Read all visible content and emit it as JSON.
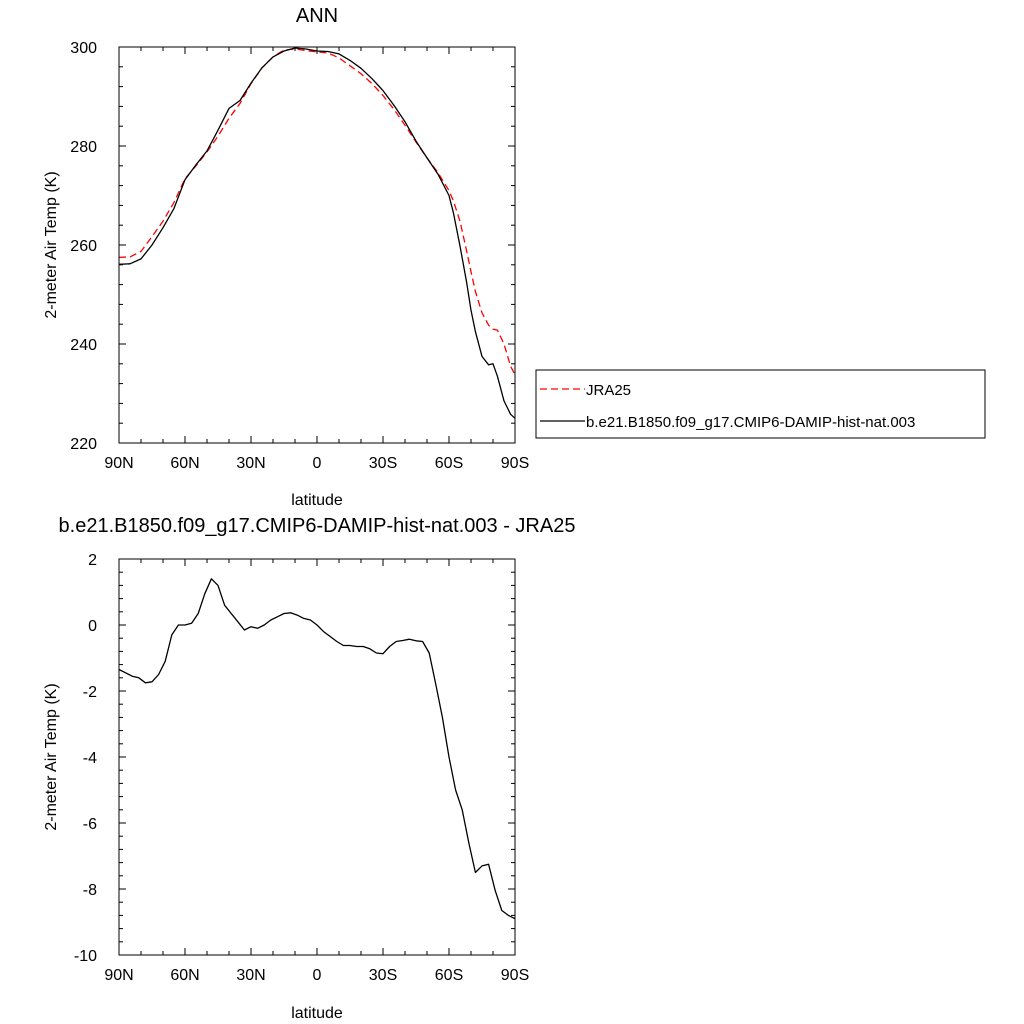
{
  "chart_data": [
    {
      "type": "line",
      "title": "ANN",
      "xlabel": "latitude",
      "ylabel": "2-meter Air Temp (K)",
      "xlim": [
        90,
        -90
      ],
      "ylim": [
        220,
        300
      ],
      "x_ticks": [
        90,
        60,
        30,
        0,
        -30,
        -60,
        -90
      ],
      "x_tick_labels": [
        "90N",
        "60N",
        "30N",
        "0",
        "30S",
        "60S",
        "90S"
      ],
      "y_ticks": [
        220,
        240,
        260,
        280,
        300
      ],
      "y_tick_labels": [
        "220",
        "240",
        "260",
        "280",
        "300"
      ],
      "legend_position": "right",
      "series": [
        {
          "name": "JRA25",
          "color": "#ff0000",
          "dash": "dashed",
          "x": [
            90,
            85,
            80,
            75,
            70,
            65,
            60,
            55,
            50,
            45,
            40,
            35,
            30,
            25,
            20,
            15,
            10,
            5,
            0,
            -5,
            -10,
            -15,
            -20,
            -25,
            -30,
            -35,
            -40,
            -45,
            -50,
            -55,
            -60,
            -62,
            -65,
            -68,
            -70,
            -72,
            -75,
            -78,
            -80,
            -82,
            -85,
            -88,
            -90
          ],
          "values": [
            257.5,
            257.6,
            258.7,
            261.7,
            264.8,
            268.6,
            273.4,
            276.0,
            278.8,
            282.0,
            285.6,
            288.6,
            292.6,
            295.8,
            298.0,
            299.4,
            299.6,
            299.3,
            299.0,
            298.8,
            297.8,
            296.2,
            294.6,
            292.6,
            290.2,
            287.4,
            284.2,
            280.8,
            277.6,
            274.6,
            271.0,
            268.9,
            264.8,
            258.8,
            254.6,
            250.6,
            246.3,
            243.8,
            243.0,
            242.8,
            240.0,
            235.5,
            233.8
          ]
        },
        {
          "name": "b.e21.B1850.f09_g17.CMIP6-DAMIP-hist-nat.003",
          "color": "#000000",
          "dash": "solid",
          "x": [
            90,
            85,
            80,
            75,
            70,
            65,
            60,
            55,
            50,
            45,
            40,
            35,
            30,
            25,
            20,
            15,
            10,
            5,
            0,
            -5,
            -10,
            -15,
            -20,
            -25,
            -30,
            -35,
            -40,
            -45,
            -50,
            -55,
            -60,
            -62,
            -65,
            -68,
            -70,
            -72,
            -75,
            -78,
            -80,
            -82,
            -85,
            -88,
            -90
          ],
          "values": [
            256.1,
            256.2,
            257.2,
            260.0,
            263.5,
            267.4,
            273.2,
            276.2,
            279.0,
            283.2,
            287.6,
            289.2,
            292.7,
            295.8,
            298.0,
            299.2,
            299.8,
            299.6,
            299.2,
            299.1,
            298.6,
            297.3,
            295.7,
            293.6,
            291.2,
            288.2,
            284.9,
            281.0,
            277.6,
            274.3,
            270.0,
            266.5,
            259.8,
            252.5,
            246.8,
            242.5,
            237.5,
            235.8,
            236.0,
            233.5,
            228.5,
            225.8,
            225.0
          ]
        }
      ]
    },
    {
      "type": "line",
      "title": "b.e21.B1850.f09_g17.CMIP6-DAMIP-hist-nat.003 - JRA25",
      "xlabel": "latitude",
      "ylabel": "2-meter Air Temp (K)",
      "xlim": [
        90,
        -90
      ],
      "ylim": [
        -10,
        2
      ],
      "x_ticks": [
        90,
        60,
        30,
        0,
        -30,
        -60,
        -90
      ],
      "x_tick_labels": [
        "90N",
        "60N",
        "30N",
        "0",
        "30S",
        "60S",
        "90S"
      ],
      "y_ticks": [
        -10,
        -8,
        -6,
        -4,
        -2,
        0,
        2
      ],
      "y_tick_labels": [
        "-10",
        "-8",
        "-6",
        "-4",
        "-2",
        "0",
        "2"
      ],
      "series": [
        {
          "color": "#000000",
          "dash": "solid",
          "x": [
            90,
            87,
            84,
            81,
            78,
            75,
            72,
            69,
            66,
            63,
            60,
            57,
            54,
            51,
            48,
            45,
            42,
            39,
            36,
            33,
            30,
            27,
            24,
            21,
            18,
            15,
            12,
            9,
            6,
            3,
            0,
            -3,
            -6,
            -9,
            -12,
            -15,
            -18,
            -21,
            -24,
            -27,
            -30,
            -33,
            -36,
            -39,
            -42,
            -45,
            -48,
            -51,
            -54,
            -57,
            -60,
            -63,
            -66,
            -69,
            -72,
            -75,
            -78,
            -81,
            -84,
            -87,
            -90
          ],
          "values": [
            -1.35,
            -1.45,
            -1.55,
            -1.6,
            -1.75,
            -1.72,
            -1.5,
            -1.1,
            -0.3,
            0.0,
            0.0,
            0.05,
            0.35,
            0.95,
            1.4,
            1.2,
            0.6,
            0.35,
            0.1,
            -0.15,
            -0.05,
            -0.1,
            0.0,
            0.15,
            0.25,
            0.35,
            0.37,
            0.3,
            0.2,
            0.15,
            0.0,
            -0.2,
            -0.35,
            -0.5,
            -0.62,
            -0.62,
            -0.65,
            -0.65,
            -0.72,
            -0.85,
            -0.87,
            -0.65,
            -0.5,
            -0.47,
            -0.43,
            -0.48,
            -0.5,
            -0.85,
            -1.8,
            -2.8,
            -4.0,
            -5.0,
            -5.6,
            -6.6,
            -7.5,
            -7.3,
            -7.25,
            -8.05,
            -8.65,
            -8.8,
            -8.9
          ]
        }
      ]
    }
  ]
}
